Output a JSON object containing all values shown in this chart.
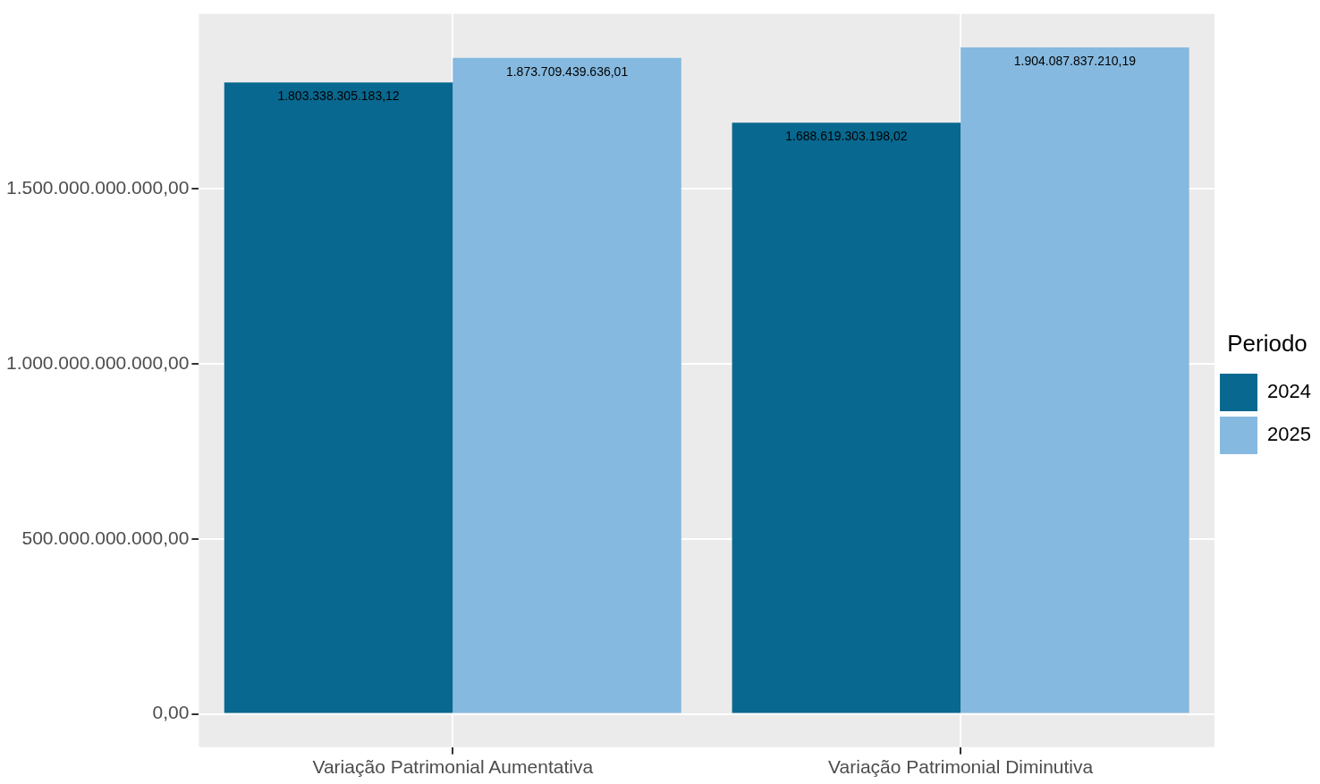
{
  "chart_data": {
    "type": "bar",
    "categories": [
      "Variação Patrimonial Aumentativa",
      "Variação Patrimonial Diminutiva"
    ],
    "series": [
      {
        "name": "2024",
        "color": "#08688f",
        "values": [
          1803338305183.12,
          1688619303198.02
        ],
        "value_labels": [
          "1.803.338.305.183,12",
          "1.688.619.303.198,02"
        ]
      },
      {
        "name": "2025",
        "color": "#85b9e0",
        "values": [
          1873709439636.01,
          1904087837210.19
        ],
        "value_labels": [
          "1.873.709.439.636,01",
          "1.904.087.837.210,19"
        ]
      }
    ],
    "legend_title": "Periodo",
    "legend": "right",
    "ylim": [
      -95200000000,
      1999300000000
    ],
    "yticks": [
      {
        "value": 0,
        "label": "0,00"
      },
      {
        "value": 500000000000,
        "label": "500.000.000.000,00"
      },
      {
        "value": 1000000000000,
        "label": "1.000.000.000.000,00"
      },
      {
        "value": 1500000000000,
        "label": "1.500.000.000.000,00"
      }
    ],
    "grid": true
  }
}
